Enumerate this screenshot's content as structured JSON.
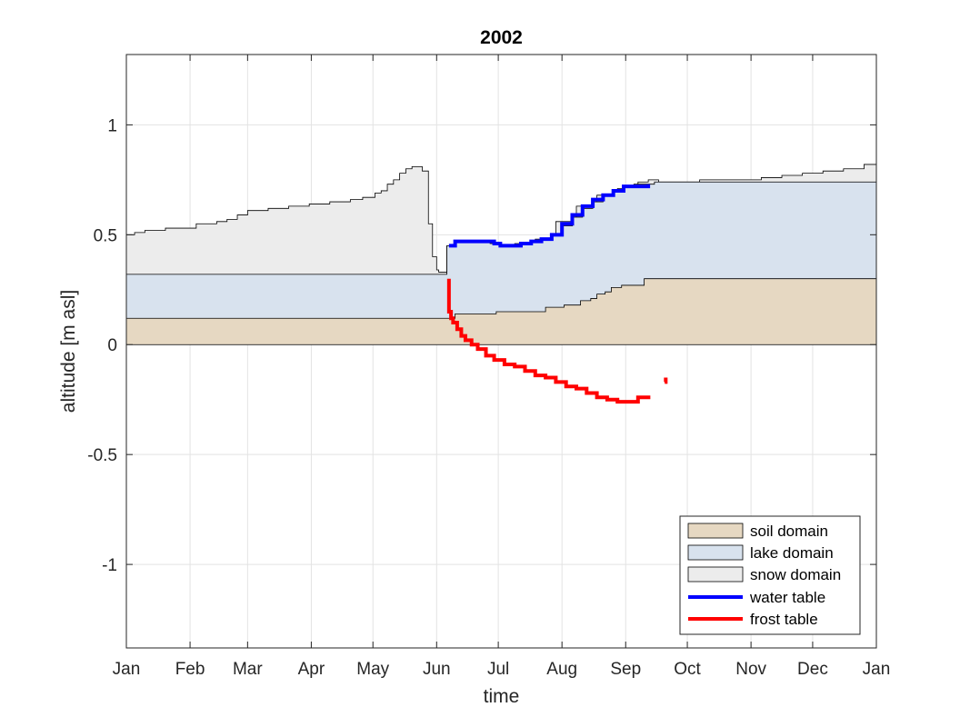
{
  "chart_data": {
    "type": "area",
    "title": "2002",
    "xlabel": "time",
    "ylabel": "altitude [m asl]",
    "x_unit": "day of year 2002",
    "xlim": [
      1,
      366
    ],
    "ylim": [
      -1.38,
      1.32
    ],
    "x_tick_positions": [
      1,
      32,
      60,
      91,
      121,
      152,
      182,
      213,
      244,
      274,
      305,
      335,
      366
    ],
    "x_ticks": [
      "Jan",
      "Feb",
      "Mar",
      "Apr",
      "May",
      "Jun",
      "Jul",
      "Aug",
      "Sep",
      "Oct",
      "Nov",
      "Dec",
      "Jan"
    ],
    "y_ticks": [
      -1,
      -0.5,
      0,
      0.5,
      1
    ],
    "y_tick_labels": [
      "-1",
      "-0.5",
      "0",
      "0.5",
      "1"
    ],
    "grid": true,
    "legend_position": "bottom-right",
    "colors": {
      "soil": "#e6d8c2",
      "lake": "#d8e2ee",
      "snow": "#ececec",
      "water_table": "#0000ff",
      "frost_table": "#ff0000",
      "outline": "#000000",
      "grid": "#e3e3e3"
    },
    "series": [
      {
        "name": "soil domain",
        "kind": "area",
        "x": [
          1,
          153,
          161,
          181,
          205,
          214,
          222,
          227,
          230,
          234,
          237,
          242,
          253,
          366
        ],
        "y": [
          0.12,
          0.12,
          0.14,
          0.15,
          0.17,
          0.18,
          0.2,
          0.21,
          0.23,
          0.24,
          0.26,
          0.27,
          0.3,
          0.3
        ]
      },
      {
        "name": "lake domain",
        "kind": "area",
        "x": [
          1,
          153,
          157,
          161,
          165,
          169,
          173,
          178,
          183,
          188,
          193,
          198,
          203,
          208,
          213,
          218,
          223,
          228,
          233,
          238,
          243,
          248,
          253,
          258,
          263,
          366
        ],
        "y": [
          0.32,
          0.32,
          0.45,
          0.47,
          0.47,
          0.47,
          0.47,
          0.46,
          0.45,
          0.45,
          0.46,
          0.47,
          0.48,
          0.5,
          0.54,
          0.58,
          0.62,
          0.65,
          0.68,
          0.7,
          0.72,
          0.73,
          0.73,
          0.74,
          0.74,
          0.74
        ]
      },
      {
        "name": "snow domain",
        "kind": "area",
        "x": [
          1,
          5,
          10,
          20,
          35,
          45,
          50,
          55,
          60,
          70,
          80,
          90,
          100,
          110,
          116,
          122,
          125,
          128,
          131,
          134,
          137,
          140,
          143,
          145,
          148,
          150,
          152,
          153,
          157,
          161,
          170,
          180,
          190,
          200,
          210,
          220,
          230,
          240,
          250,
          255,
          260,
          270,
          280,
          290,
          300,
          310,
          320,
          330,
          340,
          350,
          360,
          366
        ],
        "y": [
          0.5,
          0.51,
          0.52,
          0.53,
          0.55,
          0.56,
          0.57,
          0.59,
          0.61,
          0.62,
          0.63,
          0.64,
          0.65,
          0.66,
          0.67,
          0.69,
          0.7,
          0.73,
          0.75,
          0.78,
          0.8,
          0.81,
          0.81,
          0.79,
          0.55,
          0.4,
          0.34,
          0.33,
          0.45,
          0.47,
          0.46,
          0.45,
          0.46,
          0.48,
          0.56,
          0.63,
          0.68,
          0.71,
          0.74,
          0.75,
          0.74,
          0.74,
          0.75,
          0.75,
          0.75,
          0.76,
          0.77,
          0.78,
          0.79,
          0.8,
          0.82,
          0.82
        ]
      },
      {
        "name": "water table",
        "kind": "line",
        "x": [
          158,
          161,
          165,
          170,
          175,
          180,
          183,
          188,
          193,
          198,
          203,
          208,
          213,
          218,
          223,
          228,
          233,
          238,
          243,
          248,
          255
        ],
        "y": [
          0.45,
          0.47,
          0.47,
          0.47,
          0.47,
          0.46,
          0.45,
          0.45,
          0.46,
          0.47,
          0.48,
          0.5,
          0.55,
          0.59,
          0.63,
          0.66,
          0.68,
          0.7,
          0.72,
          0.72,
          0.73
        ]
      },
      {
        "name": "frost table",
        "kind": "line",
        "x": [
          158,
          158,
          159,
          160,
          162,
          164,
          166,
          169,
          172,
          176,
          180,
          185,
          190,
          195,
          200,
          205,
          210,
          215,
          220,
          225,
          230,
          235,
          240,
          245,
          250,
          256
        ],
        "y": [
          0.3,
          0.15,
          0.12,
          0.1,
          0.07,
          0.04,
          0.02,
          0.0,
          -0.02,
          -0.05,
          -0.07,
          -0.09,
          -0.1,
          -0.12,
          -0.14,
          -0.15,
          -0.17,
          -0.19,
          -0.2,
          -0.22,
          -0.24,
          -0.25,
          -0.26,
          -0.26,
          -0.24,
          -0.24
        ]
      },
      {
        "name": "frost table (isolated segment)",
        "kind": "line",
        "x": [
          263,
          263.5
        ],
        "y": [
          -0.17,
          -0.15
        ]
      }
    ]
  }
}
